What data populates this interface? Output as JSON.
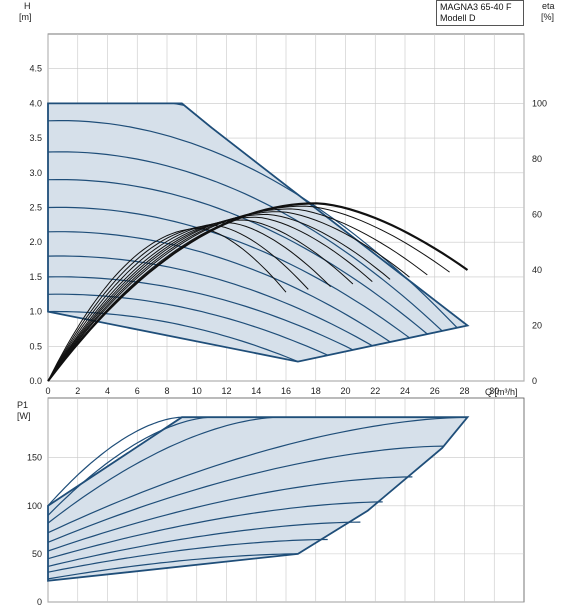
{
  "model": {
    "line1": "MAGNA3 65-40 F",
    "line2": "Modell D"
  },
  "chart_data": [
    {
      "type": "line",
      "name": "head-chart",
      "ylabel": "H",
      "yunit": "[m]",
      "y2label": "eta",
      "y2unit": "[%]",
      "xlabel": "Q [m³/h]",
      "xlim": [
        0,
        32
      ],
      "ylim": [
        0,
        5
      ],
      "y2lim": [
        0,
        125
      ],
      "xticks": [
        0,
        2,
        4,
        6,
        8,
        10,
        12,
        14,
        16,
        18,
        20,
        22,
        24,
        26,
        28,
        30
      ],
      "yticks": [
        0.0,
        0.5,
        1.0,
        1.5,
        2.0,
        2.5,
        3.0,
        3.5,
        4.0,
        4.5
      ],
      "y2ticks": [
        0,
        20,
        40,
        60,
        80,
        100
      ],
      "grid": true,
      "envelope": {
        "x": [
          0,
          9,
          11,
          15.5,
          28.2,
          16.8,
          0
        ],
        "y": [
          4.0,
          4.0,
          3.65,
          2.9,
          0.8,
          0.28,
          1.0
        ]
      },
      "head_curves": [
        {
          "h0": 4.0,
          "qmax": 28.2
        },
        {
          "h0": 3.75,
          "qmax": 27.5
        },
        {
          "h0": 3.3,
          "qmax": 26.5
        },
        {
          "h0": 2.9,
          "qmax": 25.5
        },
        {
          "h0": 2.5,
          "qmax": 24.3
        },
        {
          "h0": 2.15,
          "qmax": 23.0
        },
        {
          "h0": 1.8,
          "qmax": 21.8
        },
        {
          "h0": 1.5,
          "qmax": 20.5
        },
        {
          "h0": 1.25,
          "qmax": 18.8
        },
        {
          "h0": 1.0,
          "qmax": 16.8
        }
      ],
      "eta_curves": [
        {
          "qmax": 28.2,
          "peak": 64
        },
        {
          "qmax": 27.0,
          "peak": 63
        },
        {
          "qmax": 25.5,
          "peak": 62
        },
        {
          "qmax": 24.3,
          "peak": 61
        },
        {
          "qmax": 23.0,
          "peak": 60
        },
        {
          "qmax": 21.8,
          "peak": 59
        },
        {
          "qmax": 20.5,
          "peak": 58
        },
        {
          "qmax": 19.0,
          "peak": 57
        },
        {
          "qmax": 17.5,
          "peak": 56
        },
        {
          "qmax": 16.0,
          "peak": 55
        }
      ]
    },
    {
      "type": "line",
      "name": "power-chart",
      "ylabel": "P1",
      "yunit": "[W]",
      "xlim": [
        0,
        32
      ],
      "ylim": [
        0,
        212
      ],
      "yticks": [
        0,
        50,
        100,
        150
      ],
      "grid": true,
      "envelope": {
        "x": [
          0,
          9,
          28.2,
          26.5,
          21.5,
          16.8,
          0
        ],
        "y": [
          100,
          192,
          192,
          160,
          95,
          50,
          22
        ]
      },
      "power_curves": [
        {
          "p0": 100,
          "qend": 9,
          "pend": 192
        },
        {
          "p0": 90,
          "qend": 11,
          "pend": 192
        },
        {
          "p0": 82,
          "qend": 15.5,
          "pend": 192
        },
        {
          "p0": 72,
          "qend": 28.2,
          "pend": 192
        },
        {
          "p0": 62,
          "qend": 26.6,
          "pend": 162
        },
        {
          "p0": 53,
          "qend": 24.5,
          "pend": 130
        },
        {
          "p0": 45,
          "qend": 22.5,
          "pend": 104
        },
        {
          "p0": 37,
          "qend": 21.0,
          "pend": 83
        },
        {
          "p0": 31,
          "qend": 18.8,
          "pend": 65
        },
        {
          "p0": 24,
          "qend": 16.8,
          "pend": 50
        }
      ]
    }
  ]
}
